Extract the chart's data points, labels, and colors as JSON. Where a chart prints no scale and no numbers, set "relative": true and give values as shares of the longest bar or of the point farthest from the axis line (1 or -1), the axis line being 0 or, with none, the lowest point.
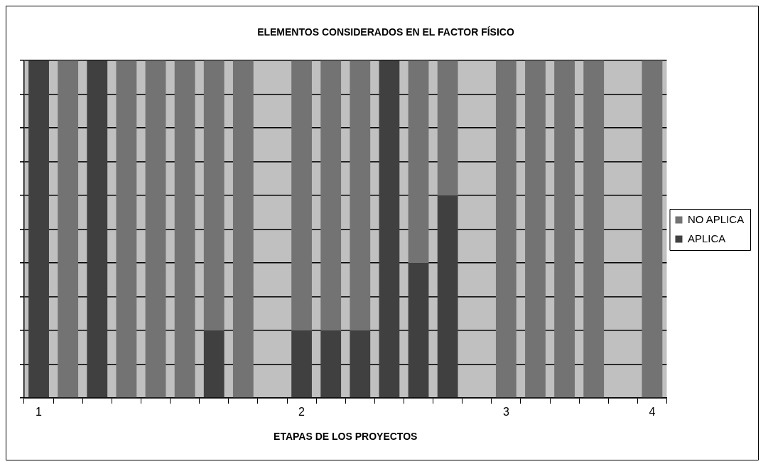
{
  "chart_data": {
    "type": "bar",
    "title": "ELEMENTOS CONSIDERADOS EN EL FACTOR FÍSICO",
    "xlabel": "ETAPAS DE LOS PROYECTOS",
    "categories": [
      "1",
      null,
      null,
      null,
      null,
      null,
      null,
      null,
      null,
      "2",
      null,
      null,
      null,
      null,
      null,
      null,
      "3",
      null,
      null,
      null,
      null,
      "4"
    ],
    "stacked": true,
    "relative": true,
    "grid": "y",
    "legend": "right",
    "series": [
      {
        "name": "APLICA",
        "color": "#404040",
        "values": [
          1,
          0,
          1,
          0,
          0,
          0,
          0.2,
          0,
          null,
          0.2,
          0.2,
          0.2,
          1,
          0.4,
          0.6,
          null,
          0,
          0,
          0,
          0,
          null,
          0
        ]
      },
      {
        "name": "NO APLICA",
        "color": "#737373",
        "values": [
          0,
          1,
          0,
          1,
          1,
          1,
          0.8,
          1,
          null,
          0.8,
          0.8,
          0.8,
          0,
          0.6,
          0.4,
          null,
          1,
          1,
          1,
          1,
          null,
          1
        ]
      }
    ]
  }
}
